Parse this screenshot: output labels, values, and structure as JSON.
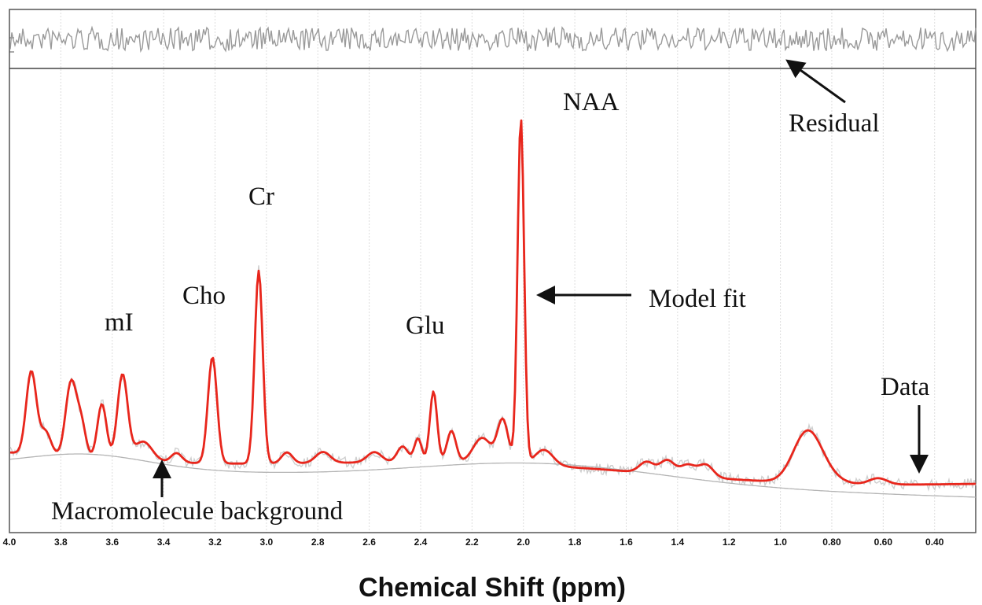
{
  "chart_data": {
    "type": "line",
    "xlabel": "Chemical Shift (ppm)",
    "ylabel": "",
    "title": "",
    "xlim": [
      4.0,
      0.24
    ],
    "x_reversed": true,
    "ticks": [
      "4.0",
      "3.8",
      "3.6",
      "3.4",
      "3.2",
      "3.0",
      "2.8",
      "2.6",
      "2.4",
      "2.2",
      "2.0",
      "1.8",
      "1.6",
      "1.4",
      "1.2",
      "1.0",
      "0.80",
      "0.60",
      "0.40"
    ],
    "tick_values": [
      4.0,
      3.8,
      3.6,
      3.4,
      3.2,
      3.0,
      2.8,
      2.6,
      2.4,
      2.2,
      2.0,
      1.8,
      1.6,
      1.4,
      1.2,
      1.0,
      0.8,
      0.6,
      0.4
    ],
    "grid": true,
    "peaks": [
      {
        "ppm": 3.91,
        "label": ""
      },
      {
        "ppm": 3.75,
        "label": ""
      },
      {
        "ppm": 3.56,
        "label": "mI"
      },
      {
        "ppm": 3.21,
        "label": "Cho"
      },
      {
        "ppm": 3.03,
        "label": "Cr"
      },
      {
        "ppm": 2.35,
        "label": "Glu"
      },
      {
        "ppm": 2.01,
        "label": "NAA"
      },
      {
        "ppm": 0.9,
        "label": ""
      }
    ],
    "series": [
      {
        "name": "Model fit",
        "color": "#e8261c",
        "style": "solid"
      },
      {
        "name": "Data",
        "color": "#c8c8c8",
        "style": "noisy"
      },
      {
        "name": "Macromolecule background",
        "color": "#b4b4b4",
        "style": "thin"
      },
      {
        "name": "Residual",
        "color": "#9a9a9a",
        "style": "noisy"
      }
    ],
    "annotations": [
      {
        "text": "NAA"
      },
      {
        "text": "Residual"
      },
      {
        "text": "Cr"
      },
      {
        "text": "Cho"
      },
      {
        "text": "mI"
      },
      {
        "text": "Glu"
      },
      {
        "text": "Model fit"
      },
      {
        "text": "Data"
      },
      {
        "text": "Macromolecule background"
      }
    ]
  }
}
